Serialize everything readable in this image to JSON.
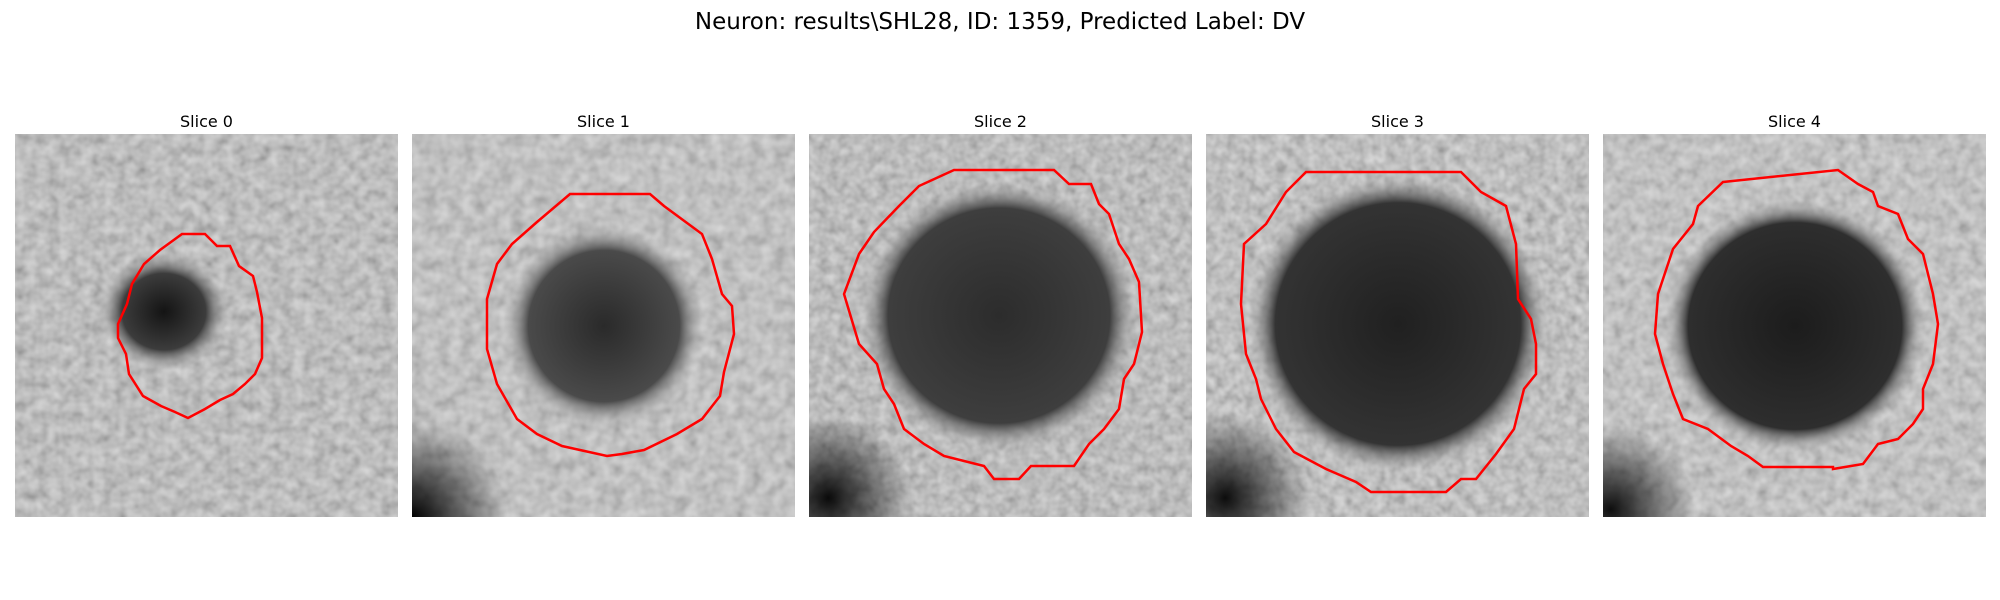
{
  "figure": {
    "title": "Neuron: results\\SHL28, ID: 1359, Predicted Label: DV"
  },
  "colors": {
    "contour": "#ff0000",
    "background": "#ffffff"
  },
  "panels": [
    {
      "title": "Slice 0"
    },
    {
      "title": "Slice 1"
    },
    {
      "title": "Slice 2"
    },
    {
      "title": "Slice 3"
    },
    {
      "title": "Slice 4"
    }
  ]
}
